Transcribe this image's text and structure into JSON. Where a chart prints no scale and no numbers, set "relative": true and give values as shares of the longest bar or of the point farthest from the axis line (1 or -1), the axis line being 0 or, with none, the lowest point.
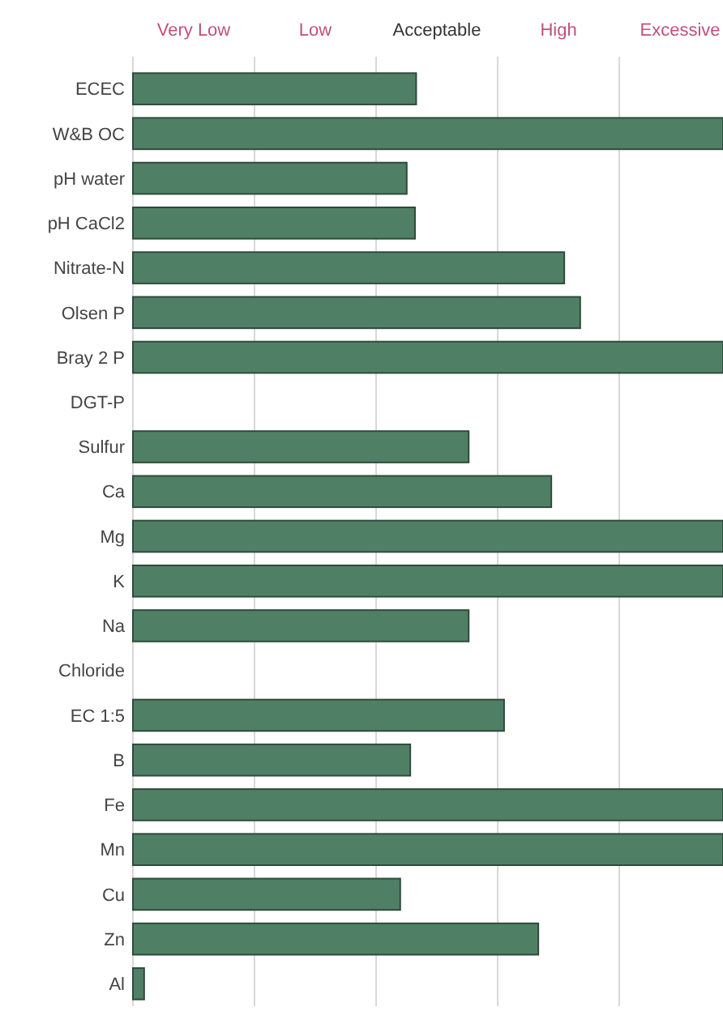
{
  "chart_data": {
    "type": "bar",
    "orientation": "horizontal",
    "relative": true,
    "color": "#4f8066",
    "categories": [
      "ECEC",
      "W&B OC",
      "pH water",
      "pH CaCl2",
      "Nitrate-N",
      "Olsen P",
      "Bray 2 P",
      "DGT-P",
      "Sulfur",
      "Ca",
      "Mg",
      "K",
      "Na",
      "Chloride",
      "EC 1:5",
      "B",
      "Fe",
      "Mn",
      "Cu",
      "Zn",
      "Al"
    ],
    "values": [
      0.48,
      1,
      0.464,
      0.478,
      0.731,
      0.758,
      1,
      null,
      0.569,
      0.709,
      1,
      1,
      0.569,
      null,
      0.629,
      0.47,
      1,
      1,
      0.453,
      0.687,
      0.019
    ],
    "annotations": [
      "Very Low",
      "Low",
      "Acceptable",
      "High",
      "Excessive"
    ],
    "grid": "x"
  }
}
